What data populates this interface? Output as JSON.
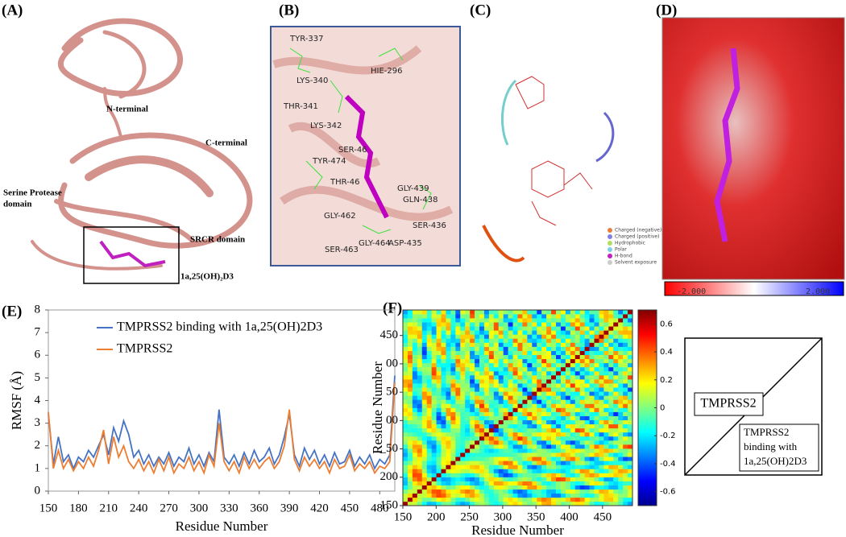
{
  "panel_labels": [
    "(A)",
    "(B)",
    "(C)",
    "(D)",
    "(E)",
    "(F)"
  ],
  "panel_a": {
    "annotations": [
      "N-terminal",
      "C-terminal",
      "Serine Protease",
      "domain",
      "SRCR domain",
      "1a,25(OH)₂D3"
    ]
  },
  "panel_b": {
    "residues": [
      "TYR-337",
      "LYS-340",
      "THR-341",
      "LYS-342",
      "HIE-296",
      "SER-46",
      "TYR-474",
      "THR-46",
      "GLY-439",
      "GLN-438",
      "GLY-462",
      "SER-436",
      "GLY-464",
      "ASP-435",
      "SER-463"
    ]
  },
  "panel_c": {
    "legend": [
      "Charged (negative)",
      "Charged (positive)",
      "Hydrophobic",
      "Polar",
      "H-bond",
      "Solvent exposure"
    ]
  },
  "panel_d": {
    "colorbar_labels": [
      "-2.000",
      "2.000"
    ]
  },
  "chart_data": [
    {
      "type": "line",
      "ylabel": "RMSF (Å)",
      "xlabel": "Residue Number",
      "legend": "top",
      "x": [
        150,
        155,
        160,
        165,
        170,
        175,
        180,
        185,
        190,
        195,
        200,
        205,
        210,
        215,
        220,
        225,
        230,
        235,
        240,
        245,
        250,
        255,
        260,
        265,
        270,
        275,
        280,
        285,
        290,
        295,
        300,
        305,
        310,
        315,
        320,
        325,
        330,
        335,
        340,
        345,
        350,
        355,
        360,
        365,
        370,
        375,
        380,
        385,
        390,
        395,
        400,
        405,
        410,
        415,
        420,
        425,
        430,
        435,
        440,
        445,
        450,
        455,
        460,
        465,
        470,
        475,
        480,
        485,
        490,
        495
      ],
      "series": [
        {
          "name": "TMPRSS2 binding with 1a,25(OH)2D3",
          "color": "#4472c4",
          "values": [
            3.4,
            1.2,
            2.4,
            1.3,
            1.6,
            1.0,
            1.5,
            1.3,
            1.8,
            1.5,
            2.0,
            2.5,
            1.6,
            2.8,
            2.2,
            3.1,
            2.5,
            1.5,
            1.8,
            1.2,
            1.6,
            1.1,
            1.5,
            1.2,
            1.7,
            1.1,
            1.5,
            1.3,
            1.9,
            1.2,
            1.6,
            1.1,
            1.7,
            1.3,
            3.6,
            1.5,
            1.2,
            1.6,
            1.1,
            1.7,
            1.2,
            1.8,
            1.3,
            1.5,
            1.9,
            1.2,
            1.6,
            2.4,
            3.4,
            1.6,
            1.1,
            1.9,
            1.4,
            1.8,
            1.2,
            1.6,
            1.1,
            1.7,
            1.2,
            1.3,
            1.8,
            1.1,
            1.5,
            1.2,
            1.6,
            1.0,
            1.4,
            1.2,
            1.6,
            5.1
          ]
        },
        {
          "name": "TMPRSS2",
          "color": "#ed7d31",
          "values": [
            3.5,
            1.0,
            1.8,
            1.0,
            1.4,
            0.9,
            1.3,
            1.0,
            1.5,
            1.1,
            1.8,
            2.7,
            1.2,
            2.4,
            1.5,
            2.0,
            1.3,
            1.0,
            1.4,
            0.9,
            1.3,
            0.8,
            1.4,
            0.9,
            1.5,
            0.8,
            1.2,
            1.0,
            1.5,
            0.9,
            1.3,
            0.8,
            1.6,
            1.1,
            3.0,
            1.3,
            0.9,
            1.3,
            0.8,
            1.5,
            1.0,
            1.4,
            1.0,
            1.3,
            1.5,
            1.0,
            1.3,
            2.0,
            3.6,
            1.4,
            0.9,
            1.5,
            1.1,
            1.4,
            1.0,
            1.3,
            0.8,
            1.4,
            1.0,
            1.1,
            1.6,
            0.9,
            1.2,
            1.0,
            1.3,
            0.8,
            1.1,
            1.0,
            1.3,
            4.8
          ]
        }
      ],
      "xlim": [
        150,
        495
      ],
      "xticks": [
        150,
        180,
        210,
        240,
        270,
        300,
        330,
        360,
        390,
        420,
        450,
        480
      ],
      "ylim": [
        0,
        8
      ],
      "yticks": [
        0,
        1,
        2,
        3,
        4,
        5,
        6,
        7,
        8
      ]
    },
    {
      "type": "heatmap",
      "ylabel": "Residue Number",
      "xlabel": "Residue Number",
      "xlim": [
        150,
        495
      ],
      "xticks": [
        150,
        200,
        250,
        300,
        350,
        400,
        450
      ],
      "ylim": [
        150,
        495
      ],
      "yticks": [
        150,
        200,
        {
          "value": 250,
          "label": "_50"
        },
        {
          "value": 300,
          "label": "00"
        },
        {
          "value": 350,
          "label": "50"
        },
        {
          "value": 400,
          "label": "00"
        },
        450
      ],
      "colorbar": {
        "lim": [
          -0.7,
          0.7
        ],
        "ticks": [
          -0.6,
          -0.4,
          -0.2,
          0,
          0.2,
          0.4,
          0.6
        ]
      }
    }
  ],
  "diagram": {
    "upper": "TMPRSS2",
    "lower": [
      "TMPRSS2",
      "binding with",
      "1a,25(OH)2D3"
    ]
  }
}
